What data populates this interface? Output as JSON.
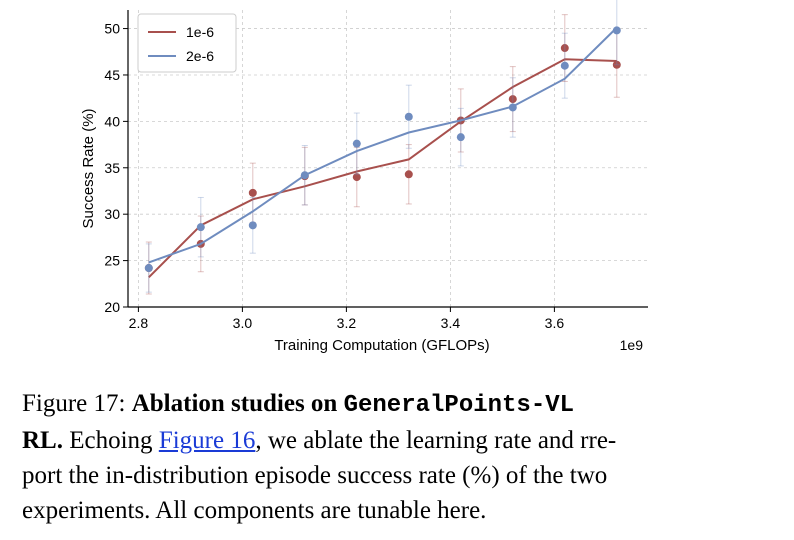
{
  "chart_data": {
    "type": "line",
    "x": [
      2820000000.0,
      2920000000.0,
      3020000000.0,
      3120000000.0,
      3220000000.0,
      3320000000.0,
      3420000000.0,
      3520000000.0,
      3620000000.0,
      3720000000.0
    ],
    "series": [
      {
        "name": "1e-6",
        "color": "#a8504d",
        "fit": [
          23.2,
          28.8,
          31.6,
          33.0,
          34.6,
          35.9,
          40.0,
          43.7,
          46.7,
          46.5
        ],
        "points": [
          24.2,
          26.8,
          32.3,
          34.1,
          34.0,
          34.3,
          40.1,
          42.4,
          47.9,
          46.1
        ],
        "errors": [
          2.8,
          3.0,
          3.2,
          3.1,
          3.2,
          3.2,
          3.4,
          3.5,
          3.6,
          3.5
        ]
      },
      {
        "name": "2e-6",
        "color": "#6f8cbf",
        "fit": [
          24.8,
          26.8,
          30.3,
          34.2,
          36.8,
          38.8,
          40.1,
          41.6,
          44.6,
          50.1
        ],
        "points": [
          24.2,
          28.6,
          28.8,
          34.2,
          37.6,
          40.5,
          38.3,
          41.5,
          46.0,
          49.8
        ],
        "errors": [
          2.6,
          3.2,
          3.0,
          3.2,
          3.3,
          3.4,
          3.1,
          3.2,
          3.5,
          3.7
        ]
      }
    ],
    "xlabel": "Training Computation (GFLOPs)",
    "ylabel": "Success Rate (%)",
    "x_exponent_label": "1e9",
    "xlim": [
      2780000000.0,
      3780000000.0
    ],
    "ylim": [
      20,
      52
    ],
    "x_ticks": [
      2800000000.0,
      3000000000.0,
      3200000000.0,
      3400000000.0,
      3600000000.0
    ],
    "x_tick_labels": [
      "2.8",
      "3.0",
      "3.2",
      "3.4",
      "3.6"
    ],
    "y_ticks": [
      20,
      25,
      30,
      35,
      40,
      45,
      50
    ],
    "y_tick_labels": [
      "20",
      "25",
      "30",
      "35",
      "40",
      "45",
      "50"
    ],
    "grid": true,
    "legend_position": "top-left"
  },
  "caption": {
    "prefix": "Figure 17:  ",
    "bold_text": "Ablation studies on ",
    "mono_text": "GeneralPoints-VL",
    "bold_rl": "RL.",
    "echo": " Echoing ",
    "link_text": "Figure 16",
    "line1_rest": ", we ablate the learning rate and rre-",
    "line2": "port the in-distribution episode success rate (%) of the two",
    "line3": "experiments.  All components are tunable here."
  }
}
